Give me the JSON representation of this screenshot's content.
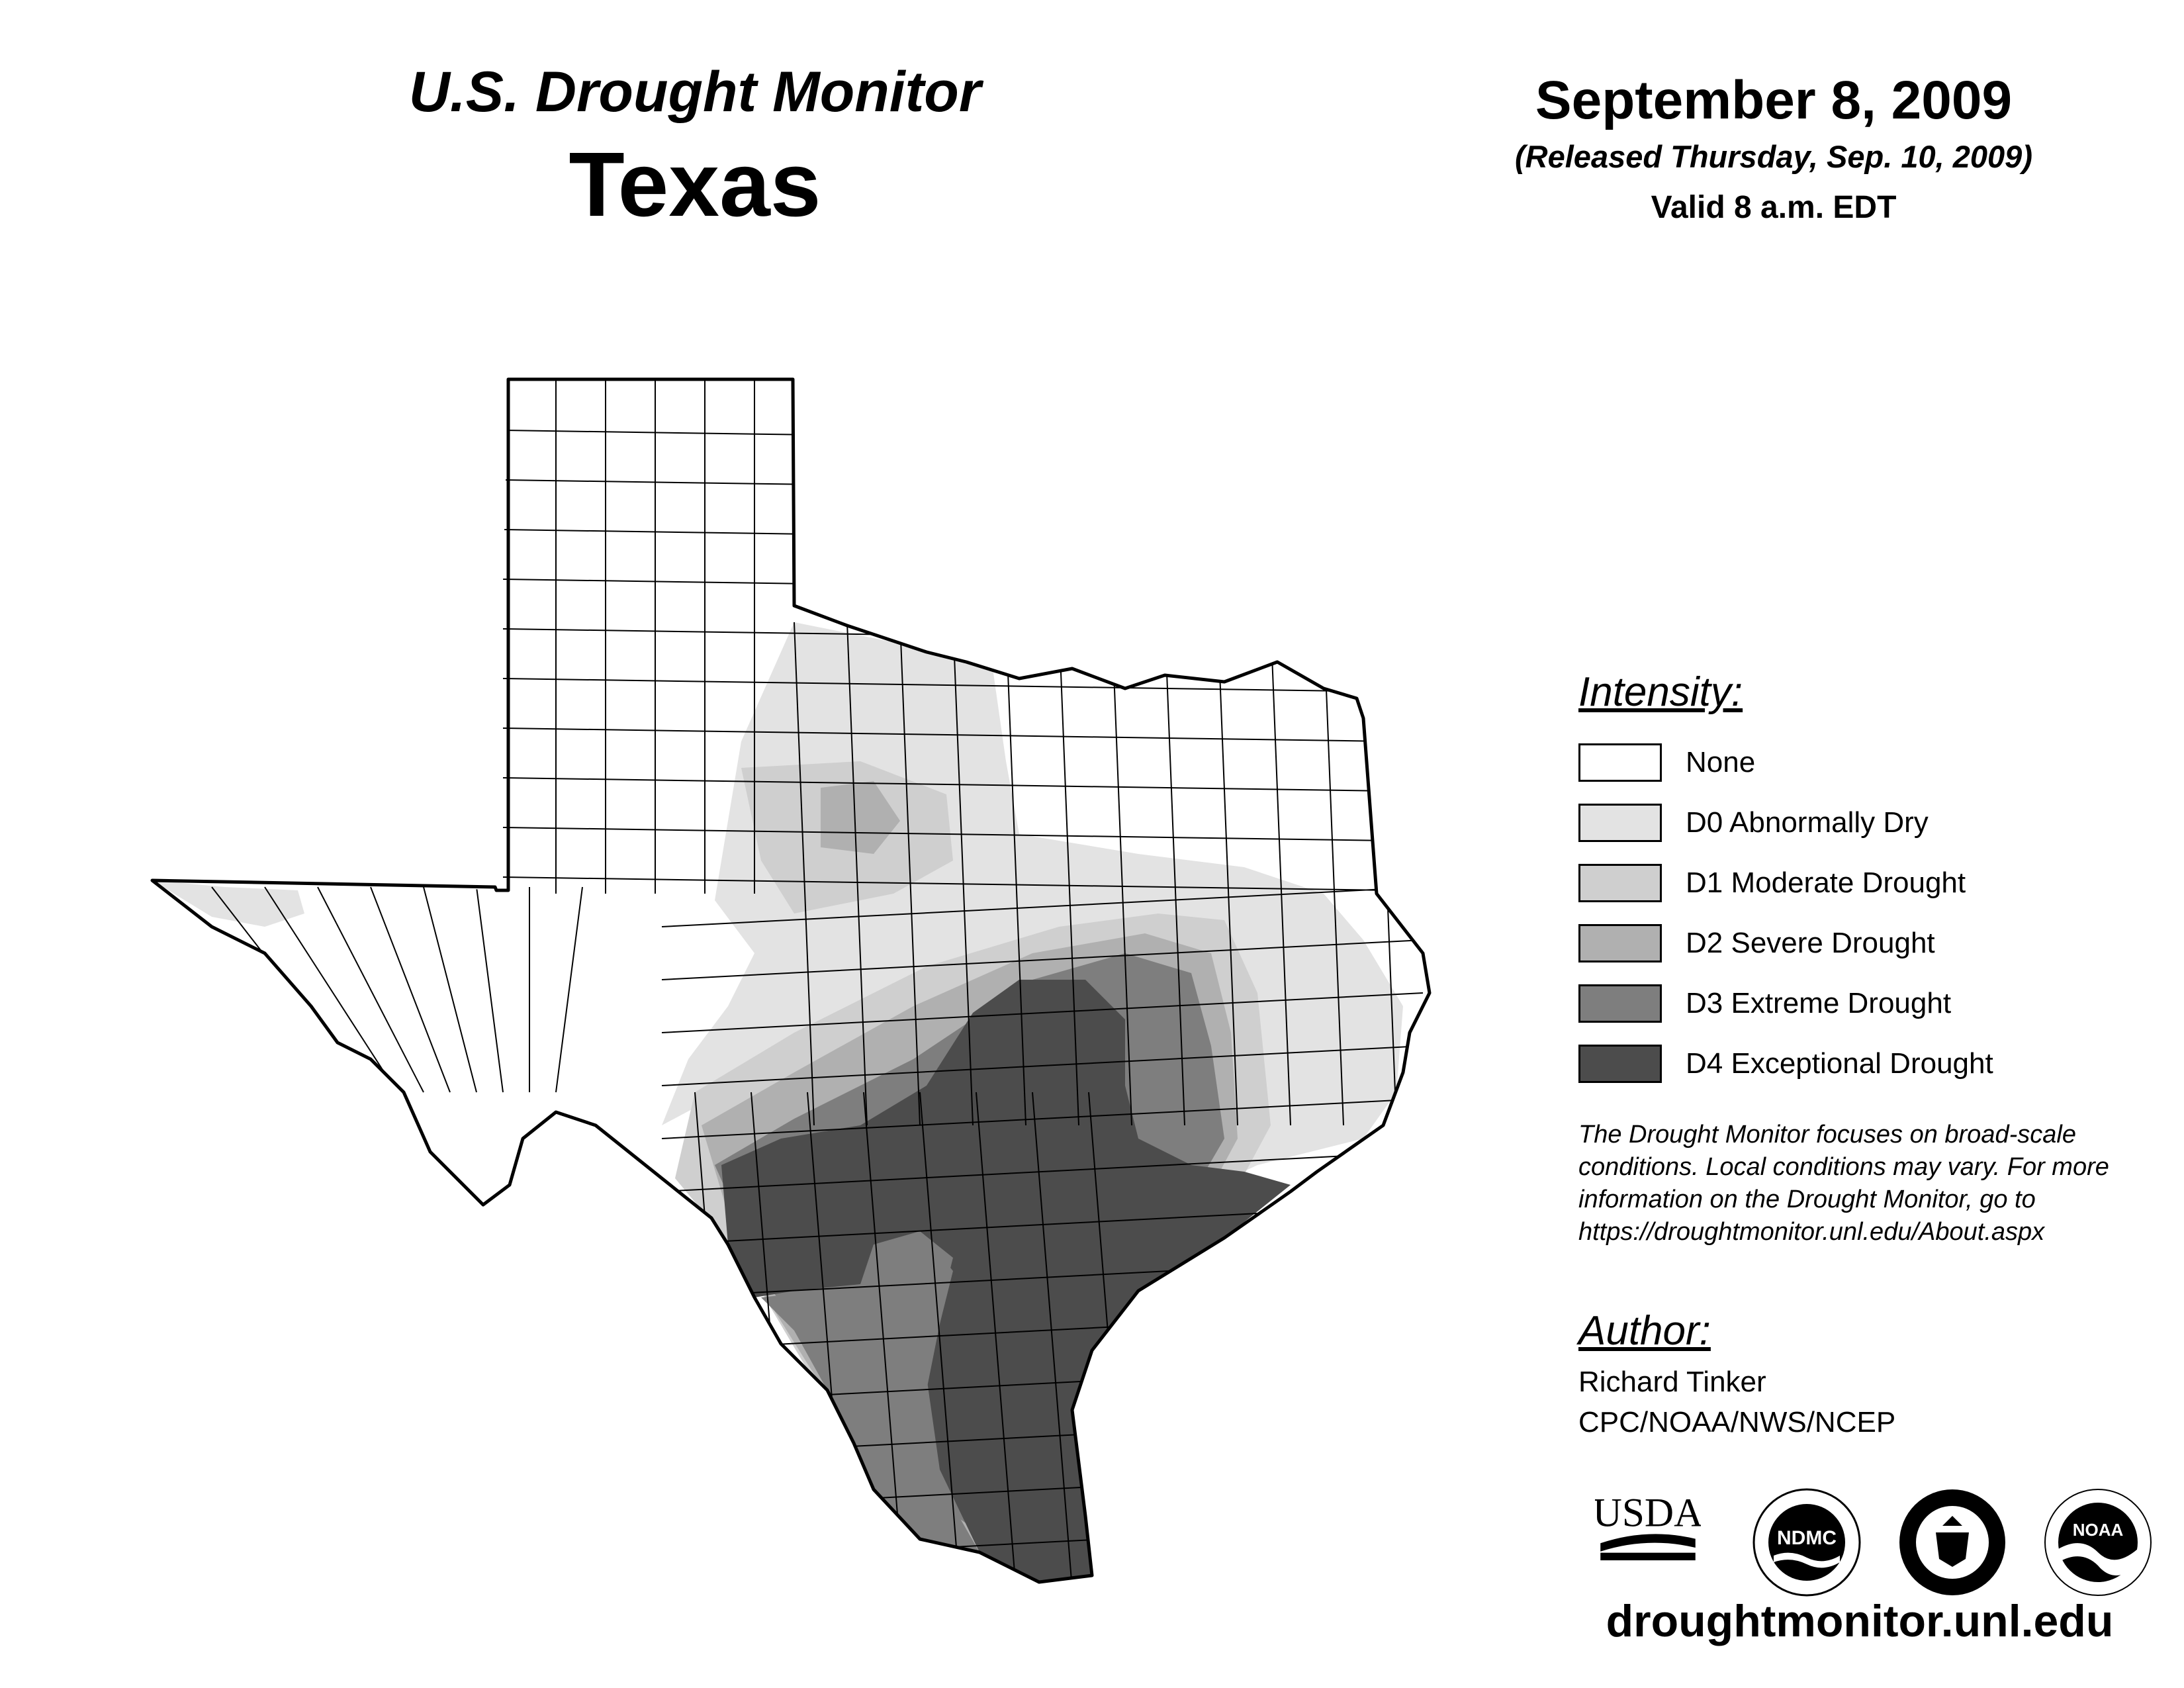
{
  "header": {
    "product": "U.S. Drought Monitor",
    "state": "Texas",
    "date": "September 8, 2009",
    "released": "(Released Thursday, Sep. 10, 2009)",
    "valid": "Valid 8 a.m. EDT"
  },
  "legend": {
    "title": "Intensity:",
    "items": [
      {
        "label": "None",
        "color": "#ffffff"
      },
      {
        "label": "D0 Abnormally Dry",
        "color": "#e3e3e3"
      },
      {
        "label": "D1 Moderate Drought",
        "color": "#cfcfcf"
      },
      {
        "label": "D2 Severe Drought",
        "color": "#b0b0b0"
      },
      {
        "label": "D3 Extreme Drought",
        "color": "#7e7e7e"
      },
      {
        "label": "D4 Exceptional Drought",
        "color": "#4c4c4c"
      }
    ]
  },
  "note": {
    "line1": "The Drought Monitor focuses on broad-scale",
    "line2": "conditions. Local conditions may vary. For more",
    "line3": "information on the Drought Monitor, go to",
    "line4": "https://droughtmonitor.unl.edu/About.aspx"
  },
  "author": {
    "title": "Author:",
    "name": "Richard Tinker",
    "org": "CPC/NOAA/NWS/NCEP"
  },
  "logos": {
    "usda": "USDA",
    "ndmc": "NDMC",
    "noaa": "NOAA"
  },
  "website": "droughtmonitor.unl.edu"
}
